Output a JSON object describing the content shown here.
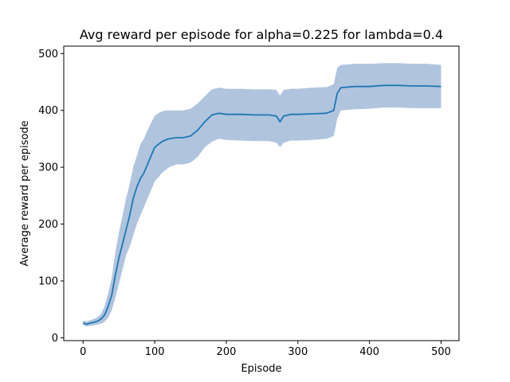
{
  "chart_data": {
    "type": "line",
    "title": "Avg reward per episode for alpha=0.225  for lambda=0.4",
    "xlabel": "Episode",
    "ylabel": "Average reward per episode",
    "xlim": [
      -27,
      525
    ],
    "ylim": [
      -5,
      513
    ],
    "xticks": [
      0,
      100,
      200,
      300,
      400,
      500
    ],
    "yticks": [
      0,
      100,
      200,
      300,
      400,
      500
    ],
    "grid": false,
    "legend": "none",
    "series_color": "#1f77b4",
    "band_color": "#b0c4de",
    "series": [
      {
        "values": [
          [
            0,
            26
          ],
          [
            5,
            24
          ],
          [
            10,
            26
          ],
          [
            15,
            27
          ],
          [
            20,
            29
          ],
          [
            25,
            33
          ],
          [
            30,
            40
          ],
          [
            35,
            55
          ],
          [
            40,
            75
          ],
          [
            45,
            110
          ],
          [
            50,
            140
          ],
          [
            55,
            165
          ],
          [
            60,
            190
          ],
          [
            65,
            215
          ],
          [
            70,
            245
          ],
          [
            75,
            265
          ],
          [
            80,
            280
          ],
          [
            85,
            290
          ],
          [
            90,
            305
          ],
          [
            95,
            320
          ],
          [
            100,
            335
          ],
          [
            105,
            340
          ],
          [
            110,
            345
          ],
          [
            115,
            348
          ],
          [
            120,
            350
          ],
          [
            130,
            352
          ],
          [
            140,
            352
          ],
          [
            150,
            355
          ],
          [
            160,
            365
          ],
          [
            170,
            380
          ],
          [
            180,
            392
          ],
          [
            190,
            395
          ],
          [
            200,
            393
          ],
          [
            220,
            393
          ],
          [
            240,
            392
          ],
          [
            260,
            392
          ],
          [
            270,
            390
          ],
          [
            275,
            380
          ],
          [
            280,
            390
          ],
          [
            290,
            393
          ],
          [
            300,
            393
          ],
          [
            320,
            394
          ],
          [
            340,
            395
          ],
          [
            350,
            400
          ],
          [
            355,
            430
          ],
          [
            360,
            440
          ],
          [
            380,
            442
          ],
          [
            400,
            442
          ],
          [
            420,
            444
          ],
          [
            440,
            444
          ],
          [
            460,
            443
          ],
          [
            480,
            443
          ],
          [
            500,
            442
          ]
        ],
        "lower": [
          [
            0,
            22
          ],
          [
            5,
            20
          ],
          [
            10,
            21
          ],
          [
            15,
            22
          ],
          [
            20,
            23
          ],
          [
            25,
            25
          ],
          [
            30,
            28
          ],
          [
            35,
            35
          ],
          [
            40,
            48
          ],
          [
            45,
            70
          ],
          [
            50,
            95
          ],
          [
            55,
            120
          ],
          [
            60,
            145
          ],
          [
            65,
            160
          ],
          [
            70,
            180
          ],
          [
            75,
            200
          ],
          [
            80,
            215
          ],
          [
            85,
            230
          ],
          [
            90,
            245
          ],
          [
            95,
            260
          ],
          [
            100,
            275
          ],
          [
            105,
            282
          ],
          [
            110,
            290
          ],
          [
            115,
            295
          ],
          [
            120,
            300
          ],
          [
            130,
            305
          ],
          [
            140,
            305
          ],
          [
            150,
            308
          ],
          [
            160,
            318
          ],
          [
            170,
            335
          ],
          [
            180,
            345
          ],
          [
            190,
            350
          ],
          [
            200,
            348
          ],
          [
            220,
            347
          ],
          [
            240,
            346
          ],
          [
            260,
            346
          ],
          [
            270,
            343
          ],
          [
            275,
            335
          ],
          [
            280,
            343
          ],
          [
            290,
            347
          ],
          [
            300,
            347
          ],
          [
            320,
            348
          ],
          [
            340,
            350
          ],
          [
            350,
            355
          ],
          [
            355,
            385
          ],
          [
            360,
            400
          ],
          [
            380,
            402
          ],
          [
            400,
            403
          ],
          [
            420,
            405
          ],
          [
            440,
            405
          ],
          [
            460,
            404
          ],
          [
            480,
            404
          ],
          [
            500,
            404
          ]
        ],
        "upper": [
          [
            0,
            30
          ],
          [
            5,
            29
          ],
          [
            10,
            31
          ],
          [
            15,
            33
          ],
          [
            20,
            36
          ],
          [
            25,
            42
          ],
          [
            30,
            55
          ],
          [
            35,
            78
          ],
          [
            40,
            105
          ],
          [
            45,
            150
          ],
          [
            50,
            185
          ],
          [
            55,
            215
          ],
          [
            60,
            245
          ],
          [
            65,
            270
          ],
          [
            70,
            300
          ],
          [
            75,
            320
          ],
          [
            80,
            340
          ],
          [
            85,
            350
          ],
          [
            90,
            365
          ],
          [
            95,
            378
          ],
          [
            100,
            390
          ],
          [
            105,
            395
          ],
          [
            110,
            398
          ],
          [
            115,
            400
          ],
          [
            120,
            400
          ],
          [
            130,
            400
          ],
          [
            140,
            400
          ],
          [
            150,
            403
          ],
          [
            160,
            412
          ],
          [
            170,
            425
          ],
          [
            180,
            437
          ],
          [
            190,
            440
          ],
          [
            200,
            438
          ],
          [
            220,
            438
          ],
          [
            240,
            437
          ],
          [
            260,
            437
          ],
          [
            270,
            436
          ],
          [
            275,
            426
          ],
          [
            280,
            436
          ],
          [
            290,
            438
          ],
          [
            300,
            438
          ],
          [
            320,
            440
          ],
          [
            340,
            441
          ],
          [
            350,
            446
          ],
          [
            355,
            475
          ],
          [
            360,
            480
          ],
          [
            380,
            482
          ],
          [
            400,
            482
          ],
          [
            420,
            483
          ],
          [
            440,
            483
          ],
          [
            460,
            482
          ],
          [
            480,
            482
          ],
          [
            500,
            480
          ]
        ]
      }
    ]
  }
}
